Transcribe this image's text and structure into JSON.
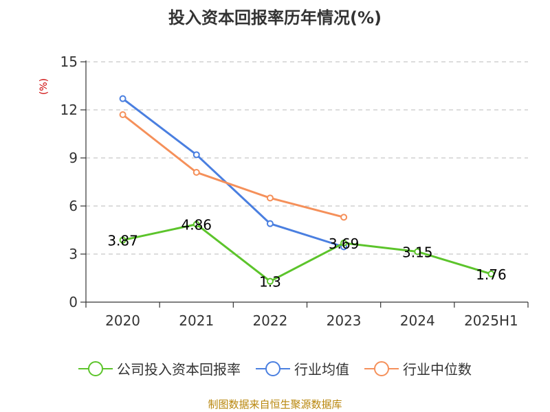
{
  "chart_data": {
    "type": "line",
    "title": "投入资本回报率历年情况(%)",
    "unit_label": "(%)",
    "categories": [
      "2020",
      "2021",
      "2022",
      "2023",
      "2024",
      "2025H1"
    ],
    "ylim": [
      0,
      15
    ],
    "yticks": [
      0,
      3,
      6,
      9,
      12,
      15
    ],
    "grid": true,
    "legend_position": "bottom",
    "series": [
      {
        "name": "公司投入资本回报率",
        "color": "#5cc42b",
        "values": [
          3.87,
          4.86,
          1.3,
          3.69,
          3.15,
          1.76
        ],
        "labels": [
          "3.87",
          "4.86",
          "1.3",
          "3.69",
          "3.15",
          "1.76"
        ]
      },
      {
        "name": "行业均值",
        "color": "#4a7fe0",
        "values": [
          12.7,
          9.2,
          4.9,
          3.45,
          null,
          null
        ]
      },
      {
        "name": "行业中位数",
        "color": "#f5905a",
        "values": [
          11.7,
          8.1,
          6.5,
          5.3,
          null,
          null
        ]
      }
    ]
  },
  "source": "制图数据来自恒生聚源数据库"
}
